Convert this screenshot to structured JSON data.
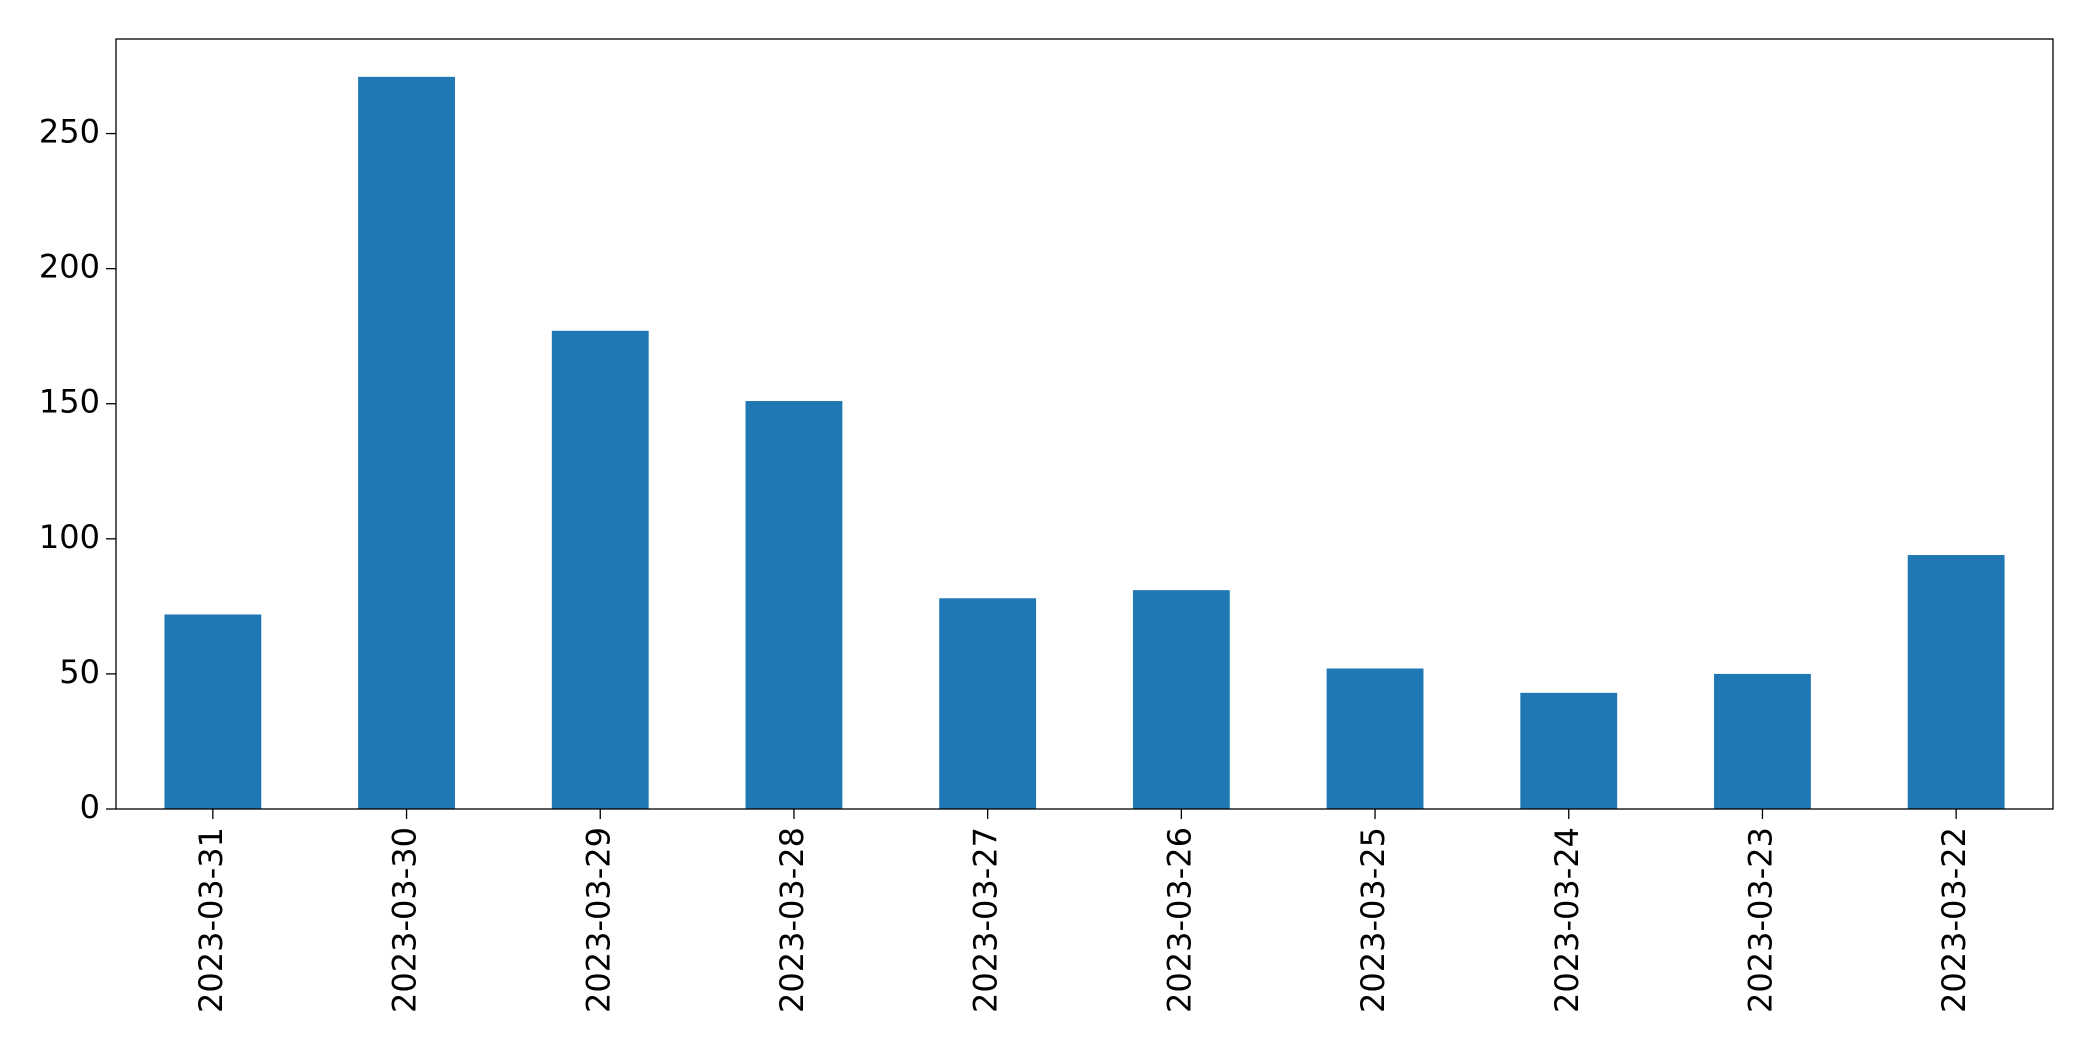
{
  "chart_data": {
    "type": "bar",
    "categories": [
      "2023-03-31",
      "2023-03-30",
      "2023-03-29",
      "2023-03-28",
      "2023-03-27",
      "2023-03-26",
      "2023-03-25",
      "2023-03-24",
      "2023-03-23",
      "2023-03-22"
    ],
    "values": [
      72,
      271,
      177,
      151,
      78,
      81,
      52,
      43,
      50,
      94
    ],
    "color": "#1f77b4",
    "ylim": [
      0,
      285
    ],
    "yticks": [
      0,
      50,
      100,
      150,
      200,
      250
    ],
    "grid": false
  }
}
